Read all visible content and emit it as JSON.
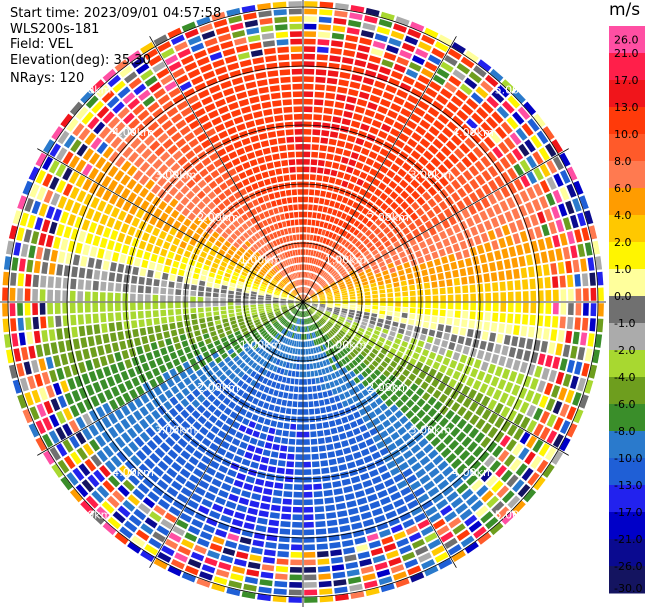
{
  "header": {
    "start_time": "Start time: 2023/09/01 04:57:58",
    "instrument": "WLS200s-181",
    "field": "Field: VEL",
    "elevation": "Elevation(deg): 35.30",
    "nrays": "NRays: 120"
  },
  "colorbar": {
    "unit": "m/s",
    "ticks": [
      "26.0",
      "21.0",
      "17.0",
      "13.0",
      "10.0",
      "8.0",
      "6.0",
      "4.0",
      "2.0",
      "1.0",
      "0.0",
      "-1.0",
      "-2.0",
      "-4.0",
      "-6.0",
      "-8.0",
      "-10.0",
      "-13.0",
      "-17.0",
      "-21.0",
      "-26.0",
      "-30.0"
    ],
    "colors": [
      "#ff4fa3",
      "#ff1f4a",
      "#f0151b",
      "#ff3a0a",
      "#ff5a2a",
      "#ff7a50",
      "#ff9c00",
      "#ffc800",
      "#fff500",
      "#ffff9c",
      "#707070",
      "#ababab",
      "#a8d830",
      "#6e9e1e",
      "#3a8e2a",
      "#2a7acc",
      "#1f5fd6",
      "#2222ee",
      "#0000c8",
      "#0a0a90",
      "#141460"
    ]
  },
  "chart_data": {
    "type": "heatmap",
    "projection": "polar PPI",
    "field": "VEL",
    "units": "m/s",
    "nrays": 120,
    "elevation_deg": 35.3,
    "range_rings": [
      "1.00km",
      "2.00km",
      "3.00km",
      "4.00km",
      "5.00km"
    ],
    "range_rings_km": [
      1,
      2,
      3,
      4,
      5
    ],
    "max_range_km": 5.1,
    "wind_pattern": {
      "max_positive_toward_az_deg": 10,
      "max_negative_toward_az_deg": 190,
      "max_speed_ms": 13,
      "noise_beyond_km": 4.0
    }
  }
}
